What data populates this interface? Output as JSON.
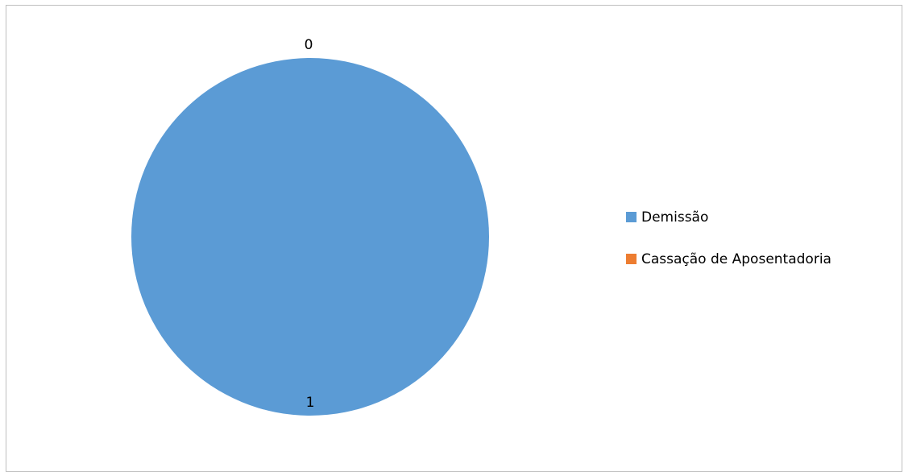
{
  "chart_data": {
    "type": "pie",
    "title": "",
    "categories": [
      "Demissão",
      "Cassação de Aposentadoria"
    ],
    "values": [
      1,
      0
    ],
    "colors": [
      "#5b9bd5",
      "#ed7d31"
    ],
    "data_labels": [
      "1",
      "0"
    ],
    "legend_position": "right"
  }
}
